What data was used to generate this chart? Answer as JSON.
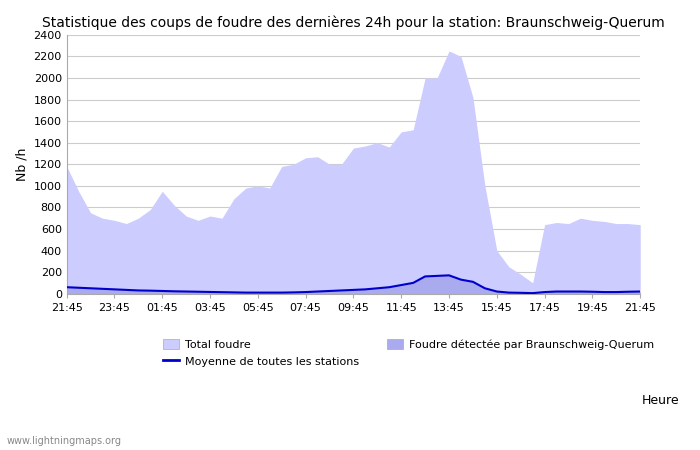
{
  "title": "Statistique des coups de foudre des dernières 24h pour la station: Braunschweig-Querum",
  "xlabel": "Heure",
  "ylabel": "Nb /h",
  "xlim": [
    0,
    24
  ],
  "ylim": [
    0,
    2400
  ],
  "yticks": [
    0,
    200,
    400,
    600,
    800,
    1000,
    1200,
    1400,
    1600,
    1800,
    2000,
    2200,
    2400
  ],
  "xtick_labels": [
    "21:45",
    "23:45",
    "01:45",
    "03:45",
    "05:45",
    "07:45",
    "09:45",
    "11:45",
    "13:45",
    "15:45",
    "17:45",
    "19:45",
    "21:45"
  ],
  "xtick_positions": [
    0,
    2,
    4,
    6,
    8,
    10,
    12,
    14,
    16,
    18,
    20,
    22,
    24
  ],
  "total_foudre_color": "#ccccff",
  "detected_color": "#aaaaee",
  "line_color": "#0000cc",
  "background_color": "#ffffff",
  "grid_color": "#cccccc",
  "watermark": "www.lightningmaps.org",
  "total_foudre_x": [
    0,
    0.5,
    1,
    1.5,
    2,
    2.5,
    3,
    3.5,
    4,
    4.5,
    5,
    5.5,
    6,
    6.5,
    7,
    7.5,
    8,
    8.5,
    9,
    9.5,
    10,
    10.5,
    11,
    11.5,
    12,
    12.5,
    13,
    13.5,
    14,
    14.5,
    15,
    15.5,
    16,
    16.5,
    17,
    17.5,
    18,
    18.5,
    19,
    19.5,
    20,
    20.5,
    21,
    21.5,
    22,
    22.5,
    23,
    23.5,
    24
  ],
  "total_foudre_y": [
    1180,
    950,
    750,
    700,
    680,
    650,
    700,
    780,
    950,
    820,
    720,
    680,
    720,
    700,
    880,
    980,
    1000,
    980,
    1180,
    1200,
    1260,
    1270,
    1200,
    1200,
    1350,
    1370,
    1400,
    1360,
    1500,
    1520,
    2000,
    2000,
    2250,
    2200,
    1820,
    1000,
    400,
    250,
    180,
    100,
    640,
    660,
    650,
    700,
    680,
    670,
    650,
    650,
    640
  ],
  "detected_x": [
    0,
    0.5,
    1,
    1.5,
    2,
    2.5,
    3,
    3.5,
    4,
    4.5,
    5,
    5.5,
    6,
    6.5,
    7,
    7.5,
    8,
    8.5,
    9,
    9.5,
    10,
    10.5,
    11,
    11.5,
    12,
    12.5,
    13,
    13.5,
    14,
    14.5,
    15,
    15.5,
    16,
    16.5,
    17,
    17.5,
    18,
    18.5,
    19,
    19.5,
    20,
    20.5,
    21,
    21.5,
    22,
    22.5,
    23,
    23.5,
    24
  ],
  "detected_y": [
    60,
    55,
    50,
    45,
    40,
    35,
    30,
    28,
    25,
    22,
    20,
    18,
    16,
    14,
    12,
    10,
    10,
    10,
    10,
    12,
    15,
    20,
    25,
    30,
    35,
    40,
    50,
    60,
    80,
    100,
    160,
    165,
    170,
    130,
    110,
    50,
    20,
    10,
    8,
    5,
    15,
    20,
    20,
    20,
    18,
    15,
    15,
    18,
    20
  ],
  "mean_line_x": [
    0,
    0.5,
    1,
    1.5,
    2,
    2.5,
    3,
    3.5,
    4,
    4.5,
    5,
    5.5,
    6,
    6.5,
    7,
    7.5,
    8,
    8.5,
    9,
    9.5,
    10,
    10.5,
    11,
    11.5,
    12,
    12.5,
    13,
    13.5,
    14,
    14.5,
    15,
    15.5,
    16,
    16.5,
    17,
    17.5,
    18,
    18.5,
    19,
    19.5,
    20,
    20.5,
    21,
    21.5,
    22,
    22.5,
    23,
    23.5,
    24
  ],
  "mean_line_y": [
    60,
    55,
    50,
    45,
    40,
    35,
    30,
    28,
    25,
    22,
    20,
    18,
    16,
    14,
    12,
    10,
    10,
    10,
    10,
    12,
    15,
    20,
    25,
    30,
    35,
    40,
    50,
    60,
    80,
    100,
    160,
    165,
    170,
    130,
    110,
    50,
    20,
    10,
    8,
    5,
    15,
    20,
    20,
    20,
    18,
    15,
    15,
    18,
    20
  ]
}
